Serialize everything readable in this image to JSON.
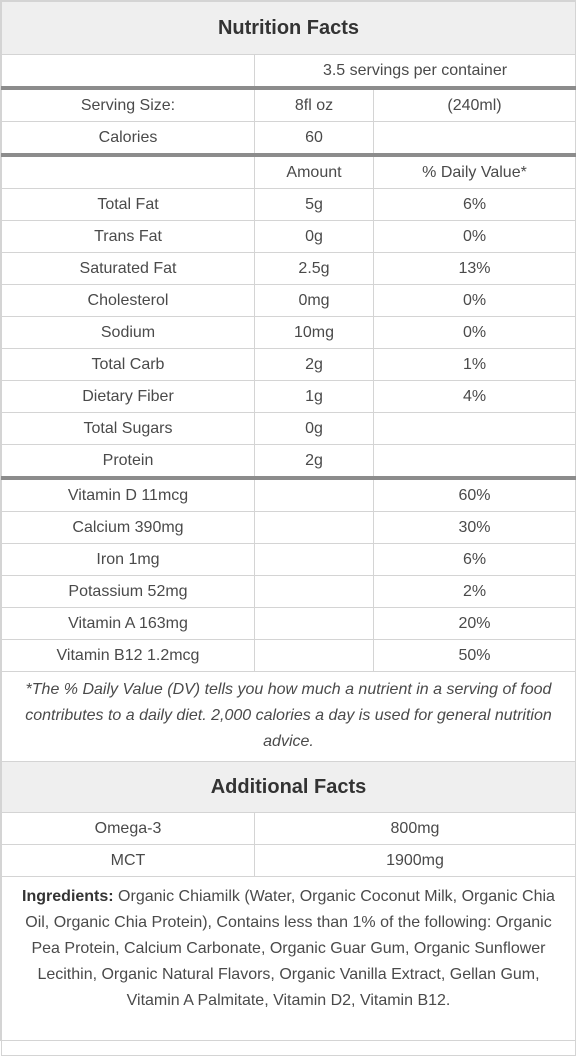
{
  "nutrition": {
    "title": "Nutrition Facts",
    "servings": "3.5 servings per container",
    "serving_size": {
      "label": "Serving Size:",
      "amount": "8fl oz",
      "metric": "(240ml)"
    },
    "calories": {
      "label": "Calories",
      "value": "60"
    },
    "headers": {
      "amount": "Amount",
      "dv": "% Daily Value*"
    },
    "nutrients": [
      {
        "name": "Total Fat",
        "amount": "5g",
        "dv": "6%"
      },
      {
        "name": "Trans Fat",
        "amount": "0g",
        "dv": "0%"
      },
      {
        "name": "Saturated Fat",
        "amount": "2.5g",
        "dv": "13%"
      },
      {
        "name": "Cholesterol",
        "amount": "0mg",
        "dv": "0%"
      },
      {
        "name": "Sodium",
        "amount": "10mg",
        "dv": "0%"
      },
      {
        "name": "Total Carb",
        "amount": "2g",
        "dv": "1%"
      },
      {
        "name": "Dietary Fiber",
        "amount": "1g",
        "dv": "4%"
      },
      {
        "name": "Total Sugars",
        "amount": "0g",
        "dv": ""
      },
      {
        "name": "Protein",
        "amount": "2g",
        "dv": ""
      }
    ],
    "vitamins": [
      {
        "name": "Vitamin D 11mcg",
        "dv": "60%"
      },
      {
        "name": "Calcium 390mg",
        "dv": "30%"
      },
      {
        "name": "Iron 1mg",
        "dv": "6%"
      },
      {
        "name": "Potassium 52mg",
        "dv": "2%"
      },
      {
        "name": "Vitamin A 163mg",
        "dv": "20%"
      },
      {
        "name": "Vitamin B12 1.2mcg",
        "dv": "50%"
      }
    ],
    "footnote": "*The % Daily Value (DV) tells you how much a nutrient in a serving of food contributes to a daily diet. 2,000 calories a day is used for general nutrition advice."
  },
  "additional": {
    "title": "Additional Facts",
    "rows": [
      {
        "name": "Omega-3",
        "value": "800mg"
      },
      {
        "name": "MCT",
        "value": "1900mg"
      }
    ],
    "ingredients_label": "Ingredients:",
    "ingredients_text": " Organic Chiamilk (Water, Organic Coconut Milk, Organic Chia Oil, Organic Chia Protein), Contains less than 1% of the following: Organic Pea Protein, Calcium Carbonate, Organic Guar Gum, Organic Sunflower Lecithin, Organic Natural Flavors, Organic Vanilla Extract, Gellan Gum, Vitamin A Palmitate, Vitamin D2, Vitamin B12."
  }
}
